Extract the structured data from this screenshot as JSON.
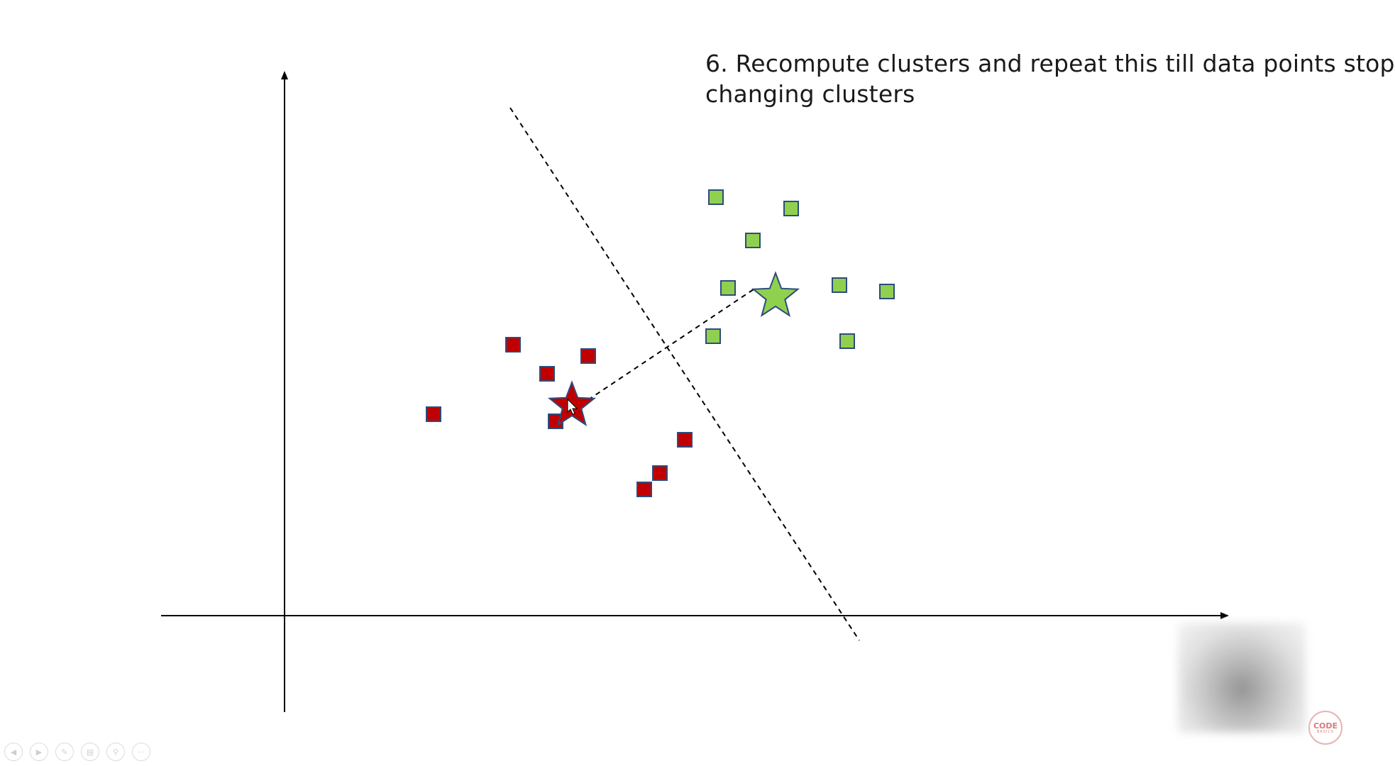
{
  "slide": {
    "title_lines": [
      "6. Recompute clusters and repeat this till data points stop",
      "changing clusters"
    ]
  },
  "colors": {
    "red_cluster": "#c00000",
    "green_cluster": "#8fd14f",
    "marker_border": "#2f4b7c",
    "axis": "#000000"
  },
  "clusters": {
    "red": {
      "centroid": [
        806,
        572
      ],
      "points": [
        [
          611,
          584
        ],
        [
          723,
          486
        ],
        [
          771,
          527
        ],
        [
          829,
          502
        ],
        [
          783,
          594
        ],
        [
          965,
          620
        ],
        [
          930,
          667
        ],
        [
          908,
          690
        ]
      ]
    },
    "green": {
      "centroid": [
        1093,
        418
      ],
      "points": [
        [
          1009,
          278
        ],
        [
          1115,
          294
        ],
        [
          1061,
          339
        ],
        [
          1026,
          406
        ],
        [
          1183,
          402
        ],
        [
          1250,
          411
        ],
        [
          1005,
          474
        ],
        [
          1194,
          481
        ]
      ]
    }
  },
  "logo": {
    "line1": "CODE",
    "line2": "BASICS"
  },
  "toolbar": {
    "buttons": [
      "previous-icon",
      "next-icon",
      "pen-icon",
      "slides-icon",
      "zoom-icon",
      "more-icon"
    ],
    "more_label": "···"
  }
}
